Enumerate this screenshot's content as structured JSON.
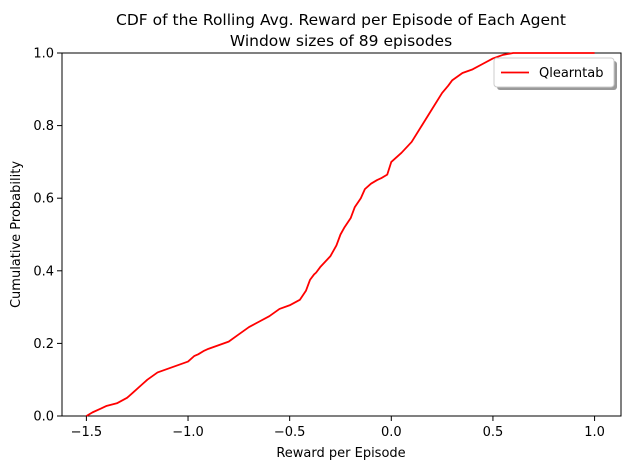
{
  "chart_data": {
    "type": "line",
    "title": "CDF of the Rolling Avg. Reward per Episode of Each Agent",
    "subtitle": "Window sizes of 89 episodes",
    "xlabel": "Reward per Episode",
    "ylabel": "Cumulative Probability",
    "xlim": [
      -1.62,
      1.13
    ],
    "ylim": [
      0,
      1.0
    ],
    "x_ticks": [
      -1.5,
      -1.0,
      -0.5,
      0.0,
      0.5,
      1.0
    ],
    "x_tick_labels": [
      "−1.5",
      "−1.0",
      "−0.5",
      "0.0",
      "0.5",
      "1.0"
    ],
    "y_ticks": [
      0.0,
      0.2,
      0.4,
      0.6,
      0.8,
      1.0
    ],
    "y_tick_labels": [
      "0.0",
      "0.2",
      "0.4",
      "0.6",
      "0.8",
      "1.0"
    ],
    "grid": false,
    "legend_position": "upper right",
    "series": [
      {
        "name": "Qlearntab",
        "color": "#ff0000",
        "x": [
          -1.5,
          -1.47,
          -1.43,
          -1.4,
          -1.35,
          -1.3,
          -1.27,
          -1.23,
          -1.2,
          -1.15,
          -1.1,
          -1.05,
          -1.0,
          -0.97,
          -0.95,
          -0.92,
          -0.9,
          -0.85,
          -0.8,
          -0.75,
          -0.7,
          -0.65,
          -0.6,
          -0.55,
          -0.5,
          -0.45,
          -0.42,
          -0.4,
          -0.38,
          -0.37,
          -0.35,
          -0.3,
          -0.27,
          -0.25,
          -0.23,
          -0.2,
          -0.18,
          -0.15,
          -0.13,
          -0.1,
          -0.07,
          -0.05,
          -0.02,
          0.0,
          0.05,
          0.1,
          0.15,
          0.2,
          0.25,
          0.28,
          0.3,
          0.35,
          0.4,
          0.45,
          0.5,
          0.55,
          0.6,
          0.7,
          0.8,
          0.9,
          1.0
        ],
        "y": [
          0.0,
          0.01,
          0.02,
          0.028,
          0.035,
          0.05,
          0.065,
          0.085,
          0.1,
          0.12,
          0.13,
          0.14,
          0.15,
          0.165,
          0.17,
          0.18,
          0.185,
          0.195,
          0.205,
          0.225,
          0.245,
          0.26,
          0.275,
          0.295,
          0.305,
          0.32,
          0.345,
          0.375,
          0.39,
          0.395,
          0.41,
          0.44,
          0.47,
          0.5,
          0.52,
          0.545,
          0.575,
          0.6,
          0.625,
          0.64,
          0.65,
          0.655,
          0.665,
          0.7,
          0.725,
          0.755,
          0.8,
          0.845,
          0.89,
          0.91,
          0.925,
          0.945,
          0.955,
          0.97,
          0.985,
          0.995,
          1.0,
          1.0,
          1.0,
          1.0,
          1.0
        ]
      }
    ]
  }
}
